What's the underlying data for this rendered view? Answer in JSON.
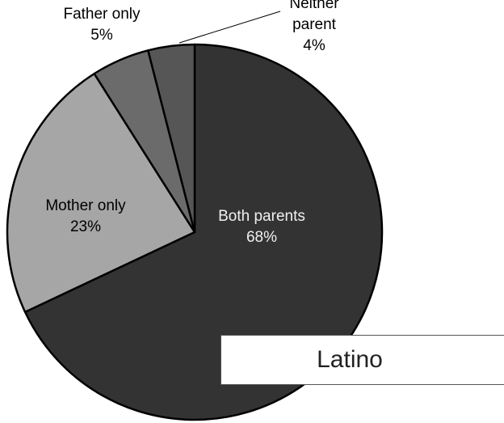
{
  "chart_data": {
    "type": "pie",
    "title": "Latino",
    "slices": [
      {
        "label": "Both parents",
        "value": 68,
        "value_label": "68%",
        "color": "#333333"
      },
      {
        "label": "Mother only",
        "value": 23,
        "value_label": "23%",
        "color": "#a6a6a6"
      },
      {
        "label": "Father only",
        "value": 5,
        "value_label": "5%",
        "color": "#6b6b6b"
      },
      {
        "label": "Neither parent",
        "value": 4,
        "value_label": "4%",
        "color": "#565656"
      }
    ],
    "legend": "none"
  }
}
